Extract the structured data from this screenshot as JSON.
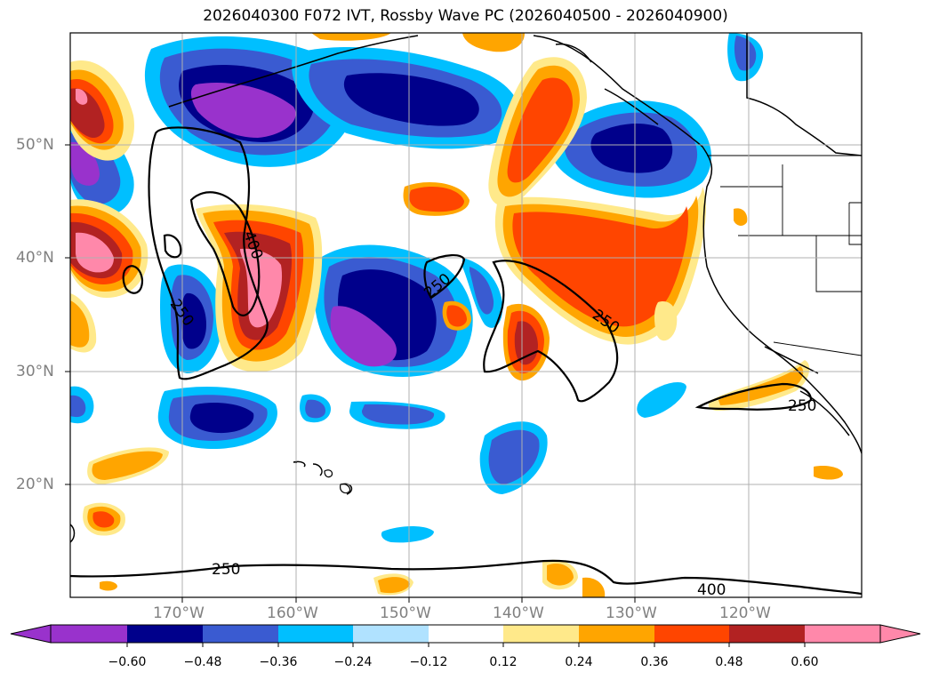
{
  "title": "2026040300 F072 IVT, Rossby Wave PC (2026040500 - 2026040900)",
  "lat_labels": [
    "50°N",
    "40°N",
    "30°N",
    "20°N"
  ],
  "lon_labels": [
    "170°W",
    "160°W",
    "150°W",
    "140°W",
    "130°W",
    "120°W"
  ],
  "contour_labels": [
    "400",
    "250",
    "250",
    "250",
    "250",
    "250",
    "400"
  ],
  "colorbar": {
    "ticks": [
      "−0.60",
      "−0.48",
      "−0.36",
      "−0.24",
      "−0.12",
      "0.12",
      "0.24",
      "0.36",
      "0.48",
      "0.60"
    ],
    "colors": [
      "#9932cc",
      "#00008b",
      "#3a5bd1",
      "#00bfff",
      "#b0e2ff",
      "#ffffff",
      "#ffe98a",
      "#ffa500",
      "#ff4500",
      "#b22222",
      "#ff88aa",
      "#ff88aa"
    ]
  }
}
